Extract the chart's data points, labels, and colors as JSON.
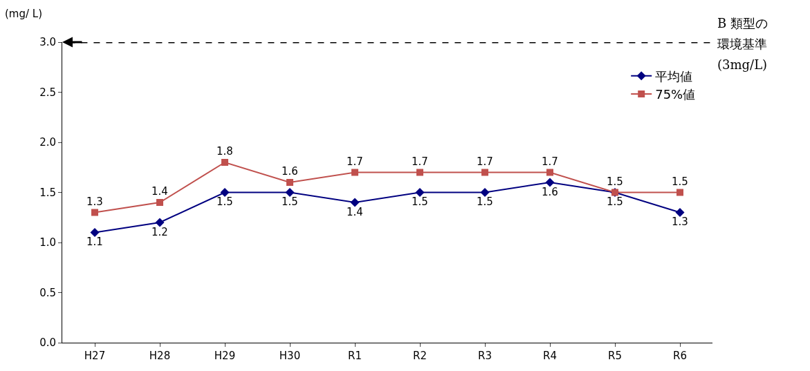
{
  "chart_data": {
    "type": "line",
    "ylabel": "(mg/ L)",
    "categories": [
      "H27",
      "H28",
      "H29",
      "H30",
      "R1",
      "R2",
      "R3",
      "R4",
      "R5",
      "R6"
    ],
    "series": [
      {
        "name": "平均値",
        "color": "#000080",
        "marker": "diamond",
        "values": [
          1.1,
          1.2,
          1.5,
          1.5,
          1.4,
          1.5,
          1.5,
          1.6,
          1.5,
          1.3
        ]
      },
      {
        "name": "75%値",
        "color": "#c0504d",
        "marker": "square",
        "values": [
          1.3,
          1.4,
          1.8,
          1.6,
          1.7,
          1.7,
          1.7,
          1.7,
          1.5,
          1.5
        ]
      }
    ],
    "ylim": [
      0,
      3
    ],
    "yticks": [
      {
        "value": 0,
        "label": "0.0"
      },
      {
        "value": 0.5,
        "label": "0.5"
      },
      {
        "value": 1,
        "label": "1.0"
      },
      {
        "value": 1.5,
        "label": "1.5"
      },
      {
        "value": 2,
        "label": "2.0"
      },
      {
        "value": 2.5,
        "label": "2.5"
      },
      {
        "value": 3,
        "label": "3.0"
      }
    ],
    "ref_lines": [
      {
        "axis": "y",
        "value": 3,
        "label": "B 類型の環境基準(3mg/L)",
        "color": "#000000",
        "line_style": "dashed"
      }
    ],
    "data_labels": true,
    "grid": false,
    "legend": "top right",
    "line_style": "solid"
  }
}
